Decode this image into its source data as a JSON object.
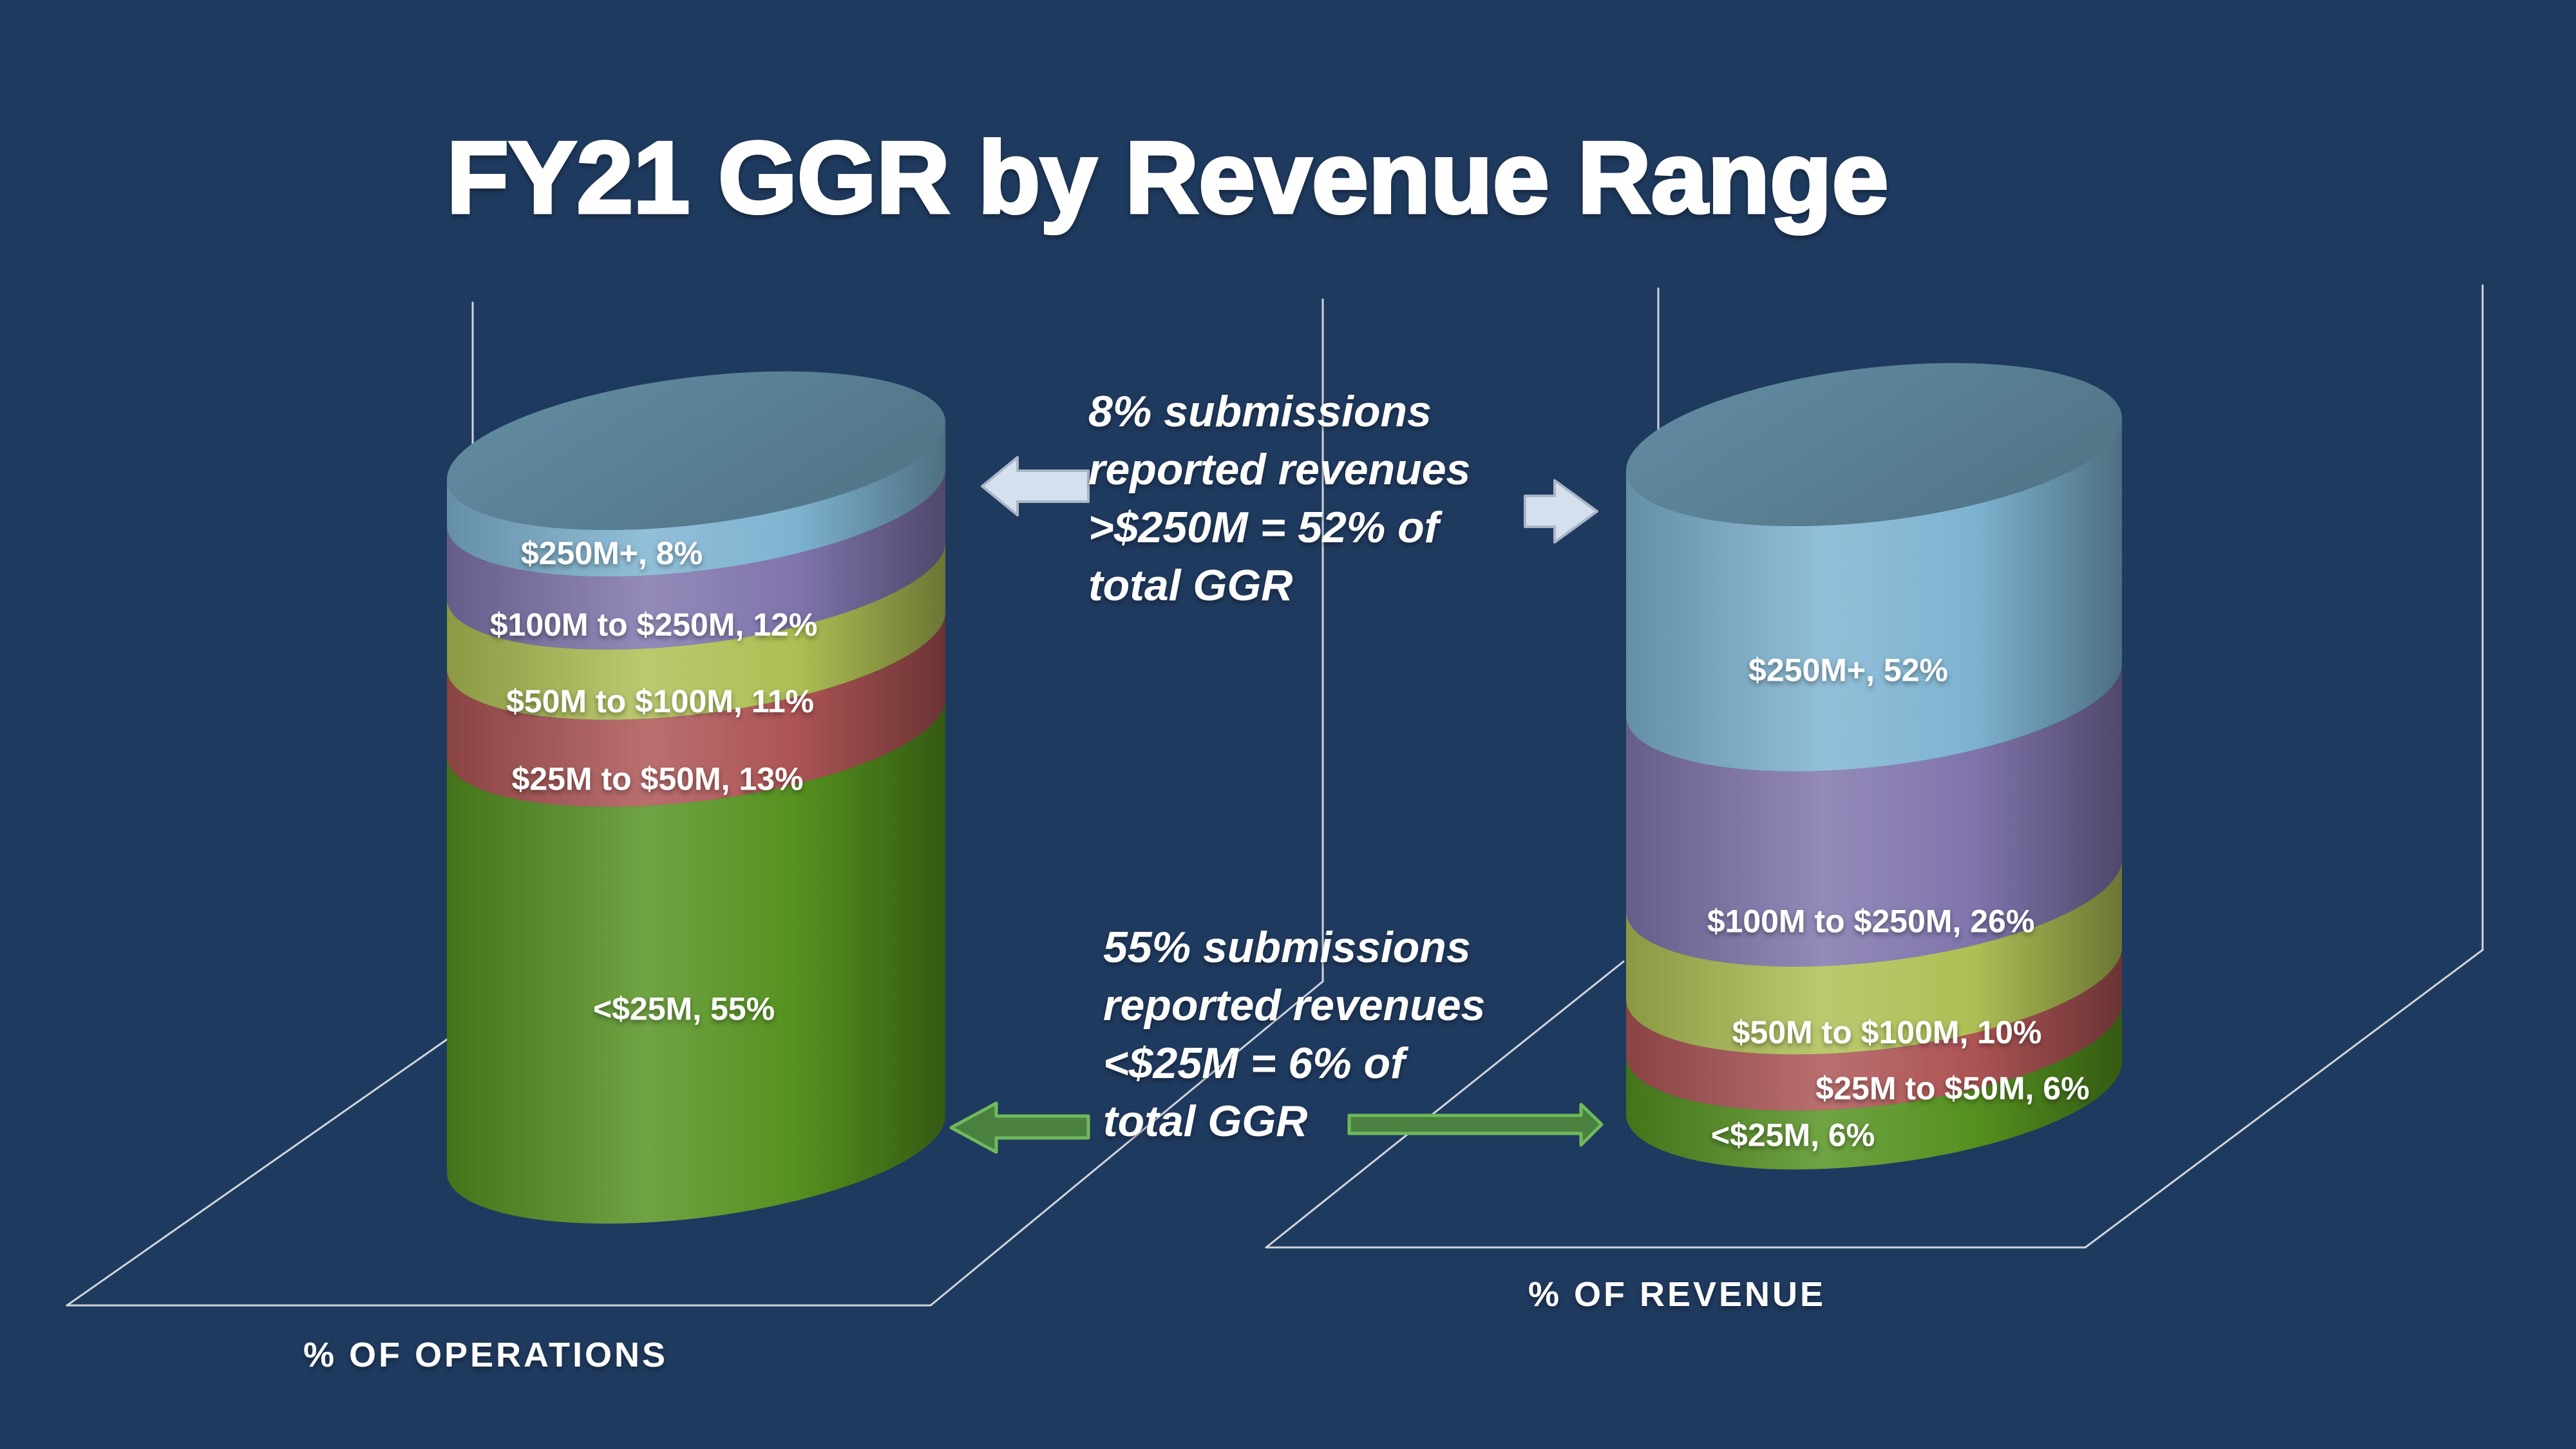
{
  "title": "FY21 GGR by Revenue Range",
  "colors": {
    "background": "#1f3a5f",
    "frame_line": "#d9dde3",
    "arrow_blue_fill": "#d4e0ee",
    "arrow_blue_stroke": "#aab6c6",
    "arrow_green_fill": "#4a8140",
    "arrow_green_stroke": "#6fba5a",
    "text": "#ffffff"
  },
  "annotations": {
    "top": {
      "lines": [
        "8% submissions",
        "reported revenues",
        ">$250M = 52% of",
        "total GGR"
      ]
    },
    "bottom": {
      "lines": [
        "55% submissions",
        "reported revenues",
        "<$25M = 6% of",
        "total GGR"
      ]
    }
  },
  "chart_data": [
    {
      "type": "bar",
      "stacked": true,
      "title": "% OF OPERATIONS",
      "unit": "%",
      "categories": [
        "$250M+",
        "$100M to $250M",
        "$50M to $100M",
        "$25M to $50M",
        "<$25M"
      ],
      "values": [
        8,
        12,
        11,
        13,
        55
      ],
      "segment_labels": [
        "$250M+, 8%",
        "$100M to $250M, 12%",
        "$50M to $100M, 11%",
        "$25M to $50M, 13%",
        "<$25M, 55%"
      ],
      "colors": [
        "#7db3d0",
        "#8074ac",
        "#aebf54",
        "#ad5454",
        "#55911f"
      ],
      "ylim": [
        0,
        100
      ],
      "legend": false,
      "style": "3d-stacked-cylinder"
    },
    {
      "type": "bar",
      "stacked": true,
      "title": "% OF REVENUE",
      "unit": "%",
      "categories": [
        "$250M+",
        "$100M to $250M",
        "$50M to $100M",
        "$25M to $50M",
        "<$25M"
      ],
      "values": [
        52,
        26,
        10,
        6,
        6
      ],
      "segment_labels": [
        "$250M+, 52%",
        "$100M to $250M, 26%",
        "$50M to $100M, 10%",
        "$25M to $50M, 6%",
        "<$25M, 6%"
      ],
      "colors": [
        "#7db3d0",
        "#8074ac",
        "#aebf54",
        "#ad5454",
        "#55911f"
      ],
      "ylim": [
        0,
        100
      ],
      "legend": false,
      "style": "3d-stacked-cylinder"
    }
  ]
}
